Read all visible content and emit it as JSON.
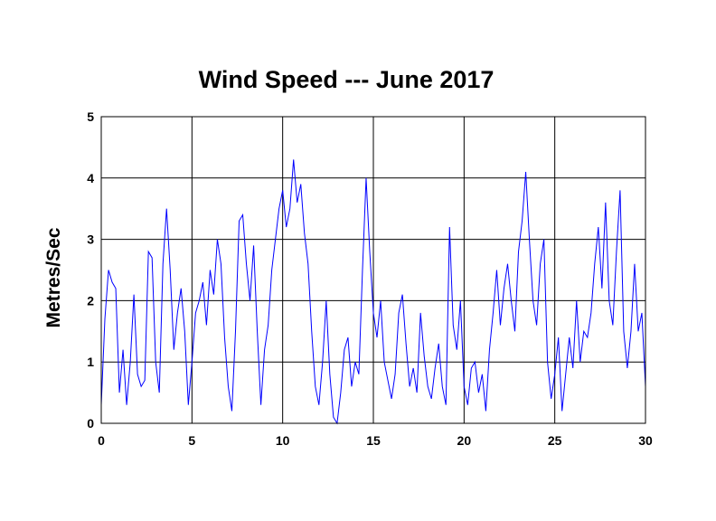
{
  "chart_data": {
    "type": "line",
    "title": "Wind Speed --- June 2017",
    "y_label": "Metres/Sec",
    "x": [
      0,
      0.2,
      0.4,
      0.6,
      0.8,
      1,
      1.2,
      1.4,
      1.6,
      1.8,
      2,
      2.2,
      2.4,
      2.6,
      2.8,
      3,
      3.2,
      3.4,
      3.6,
      3.8,
      4,
      4.2,
      4.4,
      4.6,
      4.8,
      5,
      5.2,
      5.4,
      5.6,
      5.8,
      6,
      6.2,
      6.4,
      6.6,
      6.8,
      7,
      7.2,
      7.4,
      7.6,
      7.8,
      8,
      8.2,
      8.4,
      8.6,
      8.8,
      9,
      9.2,
      9.4,
      9.6,
      9.8,
      10,
      10.2,
      10.4,
      10.6,
      10.8,
      11,
      11.2,
      11.4,
      11.6,
      11.8,
      12,
      12.2,
      12.4,
      12.6,
      12.8,
      13,
      13.2,
      13.4,
      13.6,
      13.8,
      14,
      14.2,
      14.4,
      14.6,
      14.8,
      15,
      15.2,
      15.4,
      15.6,
      15.8,
      16,
      16.2,
      16.4,
      16.6,
      16.8,
      17,
      17.2,
      17.4,
      17.6,
      17.8,
      18,
      18.2,
      18.4,
      18.6,
      18.8,
      19,
      19.2,
      19.4,
      19.6,
      19.8,
      20,
      20.2,
      20.4,
      20.6,
      20.8,
      21,
      21.2,
      21.4,
      21.6,
      21.8,
      22,
      22.2,
      22.4,
      22.6,
      22.8,
      23,
      23.2,
      23.4,
      23.6,
      23.8,
      24,
      24.2,
      24.4,
      24.6,
      24.8,
      25,
      25.2,
      25.4,
      25.6,
      25.8,
      26,
      26.2,
      26.4,
      26.6,
      26.8,
      27,
      27.2,
      27.4,
      27.6,
      27.8,
      28,
      28.2,
      28.4,
      28.6,
      28.8,
      29,
      29.2,
      29.4,
      29.6,
      29.8,
      30
    ],
    "series": [
      {
        "name": "Wind Speed",
        "color": "#0000ff",
        "values": [
          0.3,
          1.7,
          2.5,
          2.3,
          2.2,
          0.5,
          1.2,
          0.3,
          1.0,
          2.1,
          0.8,
          0.6,
          0.7,
          2.8,
          2.7,
          1.0,
          0.5,
          2.6,
          3.5,
          2.5,
          1.2,
          1.8,
          2.2,
          1.5,
          0.3,
          1.0,
          1.8,
          2.0,
          2.3,
          1.6,
          2.5,
          2.1,
          3.0,
          2.6,
          1.4,
          0.6,
          0.2,
          1.5,
          3.3,
          3.4,
          2.6,
          2.0,
          2.9,
          1.5,
          0.3,
          1.2,
          1.6,
          2.5,
          3.0,
          3.5,
          3.8,
          3.2,
          3.5,
          4.3,
          3.6,
          3.9,
          3.1,
          2.6,
          1.5,
          0.6,
          0.3,
          1.0,
          2.0,
          0.8,
          0.1,
          0.0,
          0.5,
          1.2,
          1.4,
          0.6,
          1.0,
          0.8,
          2.5,
          4.0,
          2.8,
          1.8,
          1.4,
          2.0,
          1.0,
          0.7,
          0.4,
          0.8,
          1.8,
          2.1,
          1.3,
          0.6,
          0.9,
          0.5,
          1.8,
          1.1,
          0.6,
          0.4,
          0.9,
          1.3,
          0.6,
          0.3,
          3.2,
          1.6,
          1.2,
          2.0,
          0.6,
          0.3,
          0.9,
          1.0,
          0.5,
          0.8,
          0.2,
          1.2,
          1.8,
          2.5,
          1.6,
          2.2,
          2.6,
          2.0,
          1.5,
          2.8,
          3.3,
          4.1,
          3.0,
          2.0,
          1.6,
          2.6,
          3.0,
          1.0,
          0.4,
          0.8,
          1.4,
          0.2,
          0.8,
          1.4,
          0.9,
          2.0,
          1.0,
          1.5,
          1.4,
          1.8,
          2.6,
          3.2,
          2.2,
          3.6,
          2.0,
          1.6,
          2.8,
          3.8,
          1.5,
          0.9,
          1.5,
          2.6,
          1.5,
          1.8,
          0.6
        ]
      }
    ],
    "xlim": [
      0,
      30
    ],
    "xticks": [
      0,
      5,
      10,
      15,
      20,
      25,
      30
    ],
    "ylim": [
      0,
      5
    ],
    "yticks": [
      0,
      1,
      2,
      3,
      4,
      5
    ],
    "grid": true
  }
}
